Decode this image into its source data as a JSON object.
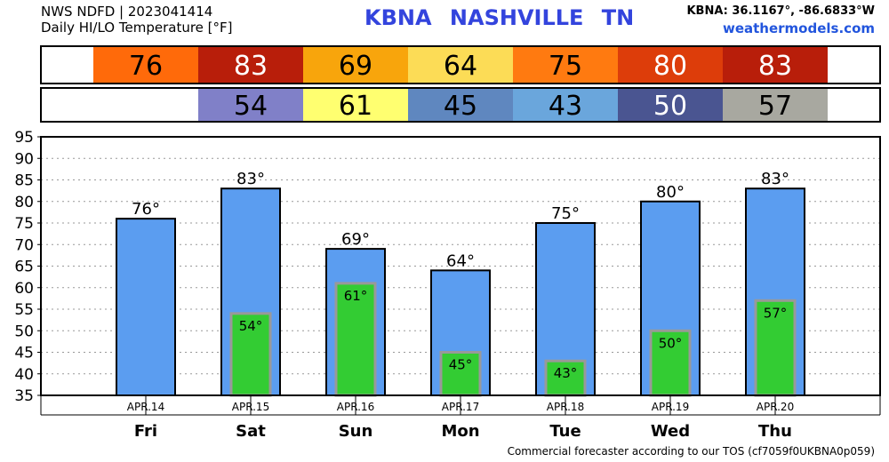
{
  "header": {
    "line1": "NWS NDFD | 2023041414",
    "line2": "Daily HI/LO Temperature [°F]",
    "station": "KBNA  NASHVILLE    TN",
    "coords": "KBNA: 36.1167°, -86.6833°W",
    "site": "weathermodels.com"
  },
  "footer": "Commercial forecaster according to our TOS (cf7059f0UKBNA0p059)",
  "colors": {
    "hi_bar": "#5b9df0",
    "lo_bar": "#33cc33",
    "lo_bar_border": "#999999",
    "hi_cells": [
      "#ff6a0a",
      "#b81e0a",
      "#f8a50c",
      "#fcdc56",
      "#ff7a10",
      "#dd3d0a",
      "#b81e0a"
    ],
    "lo_cells": [
      null,
      "#8080c8",
      "#ffff70",
      "#5f87bf",
      "#6aa6dc",
      "#4a5591",
      "#a8a8a0"
    ]
  },
  "chart_data": {
    "type": "bar",
    "categories": [
      "APR.14",
      "APR.15",
      "APR.16",
      "APR.17",
      "APR.18",
      "APR.19",
      "APR.20"
    ],
    "days": [
      "Fri",
      "Sat",
      "Sun",
      "Mon",
      "Tue",
      "Wed",
      "Thu"
    ],
    "series": [
      {
        "values": [
          76,
          83,
          69,
          64,
          75,
          80,
          83
        ]
      },
      {
        "values": [
          null,
          54,
          61,
          45,
          43,
          50,
          57
        ]
      }
    ],
    "hi_labels": [
      "76°",
      "83°",
      "69°",
      "64°",
      "75°",
      "80°",
      "83°"
    ],
    "lo_labels": [
      "",
      "54°",
      "61°",
      "45°",
      "43°",
      "50°",
      "57°"
    ],
    "hi_cells": [
      "76",
      "83",
      "69",
      "64",
      "75",
      "80",
      "83"
    ],
    "lo_cells": [
      "",
      "54",
      "61",
      "45",
      "43",
      "50",
      "57"
    ],
    "ylim": [
      35,
      95
    ],
    "yticks": [
      "35",
      "40",
      "45",
      "50",
      "55",
      "60",
      "65",
      "70",
      "75",
      "80",
      "85",
      "90",
      "95"
    ],
    "grid": true
  }
}
